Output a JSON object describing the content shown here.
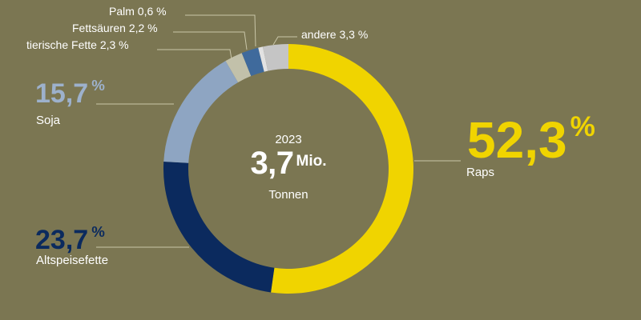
{
  "chart_data": {
    "type": "pie",
    "total": {
      "year": "2023",
      "value": "3,7",
      "value_unit": "Mio.",
      "unit": "Tonnen"
    },
    "slices": [
      {
        "label": "Raps",
        "value": 52.3,
        "display": "52,3",
        "color": "#f0d400"
      },
      {
        "label": "Altspeisefette",
        "value": 23.7,
        "display": "23,7",
        "color": "#0b2a5e"
      },
      {
        "label": "Soja",
        "value": 15.7,
        "display": "15,7",
        "color": "#8ea5c2"
      },
      {
        "label": "tierische Fette",
        "value": 2.3,
        "display": "2,3",
        "color": "#c2c1aa"
      },
      {
        "label": "Fettsäuren",
        "value": 2.2,
        "display": "2,2",
        "color": "#3f6a9c"
      },
      {
        "label": "Palm",
        "value": 0.6,
        "display": "0,6",
        "color": "#e2e2e2"
      },
      {
        "label": "andere",
        "value": 3.3,
        "display": "3,3",
        "color": "#c5c5c5"
      }
    ],
    "percent_symbol": "%"
  },
  "labels": {
    "raps_pct": "52,3",
    "raps_name": "Raps",
    "soja_pct": "15,7",
    "soja_name": "Soja",
    "alt_pct": "23,7",
    "alt_name": "Altspeisefette",
    "percent": "%",
    "palm": "Palm 0,6 %",
    "fett": "Fettsäuren 2,2 %",
    "tier": "tierische Fette 2,3 %",
    "andere": "andere 3,3 %"
  },
  "colors": {
    "background": "#7b7652",
    "leader_line": "#c9c6a8"
  }
}
